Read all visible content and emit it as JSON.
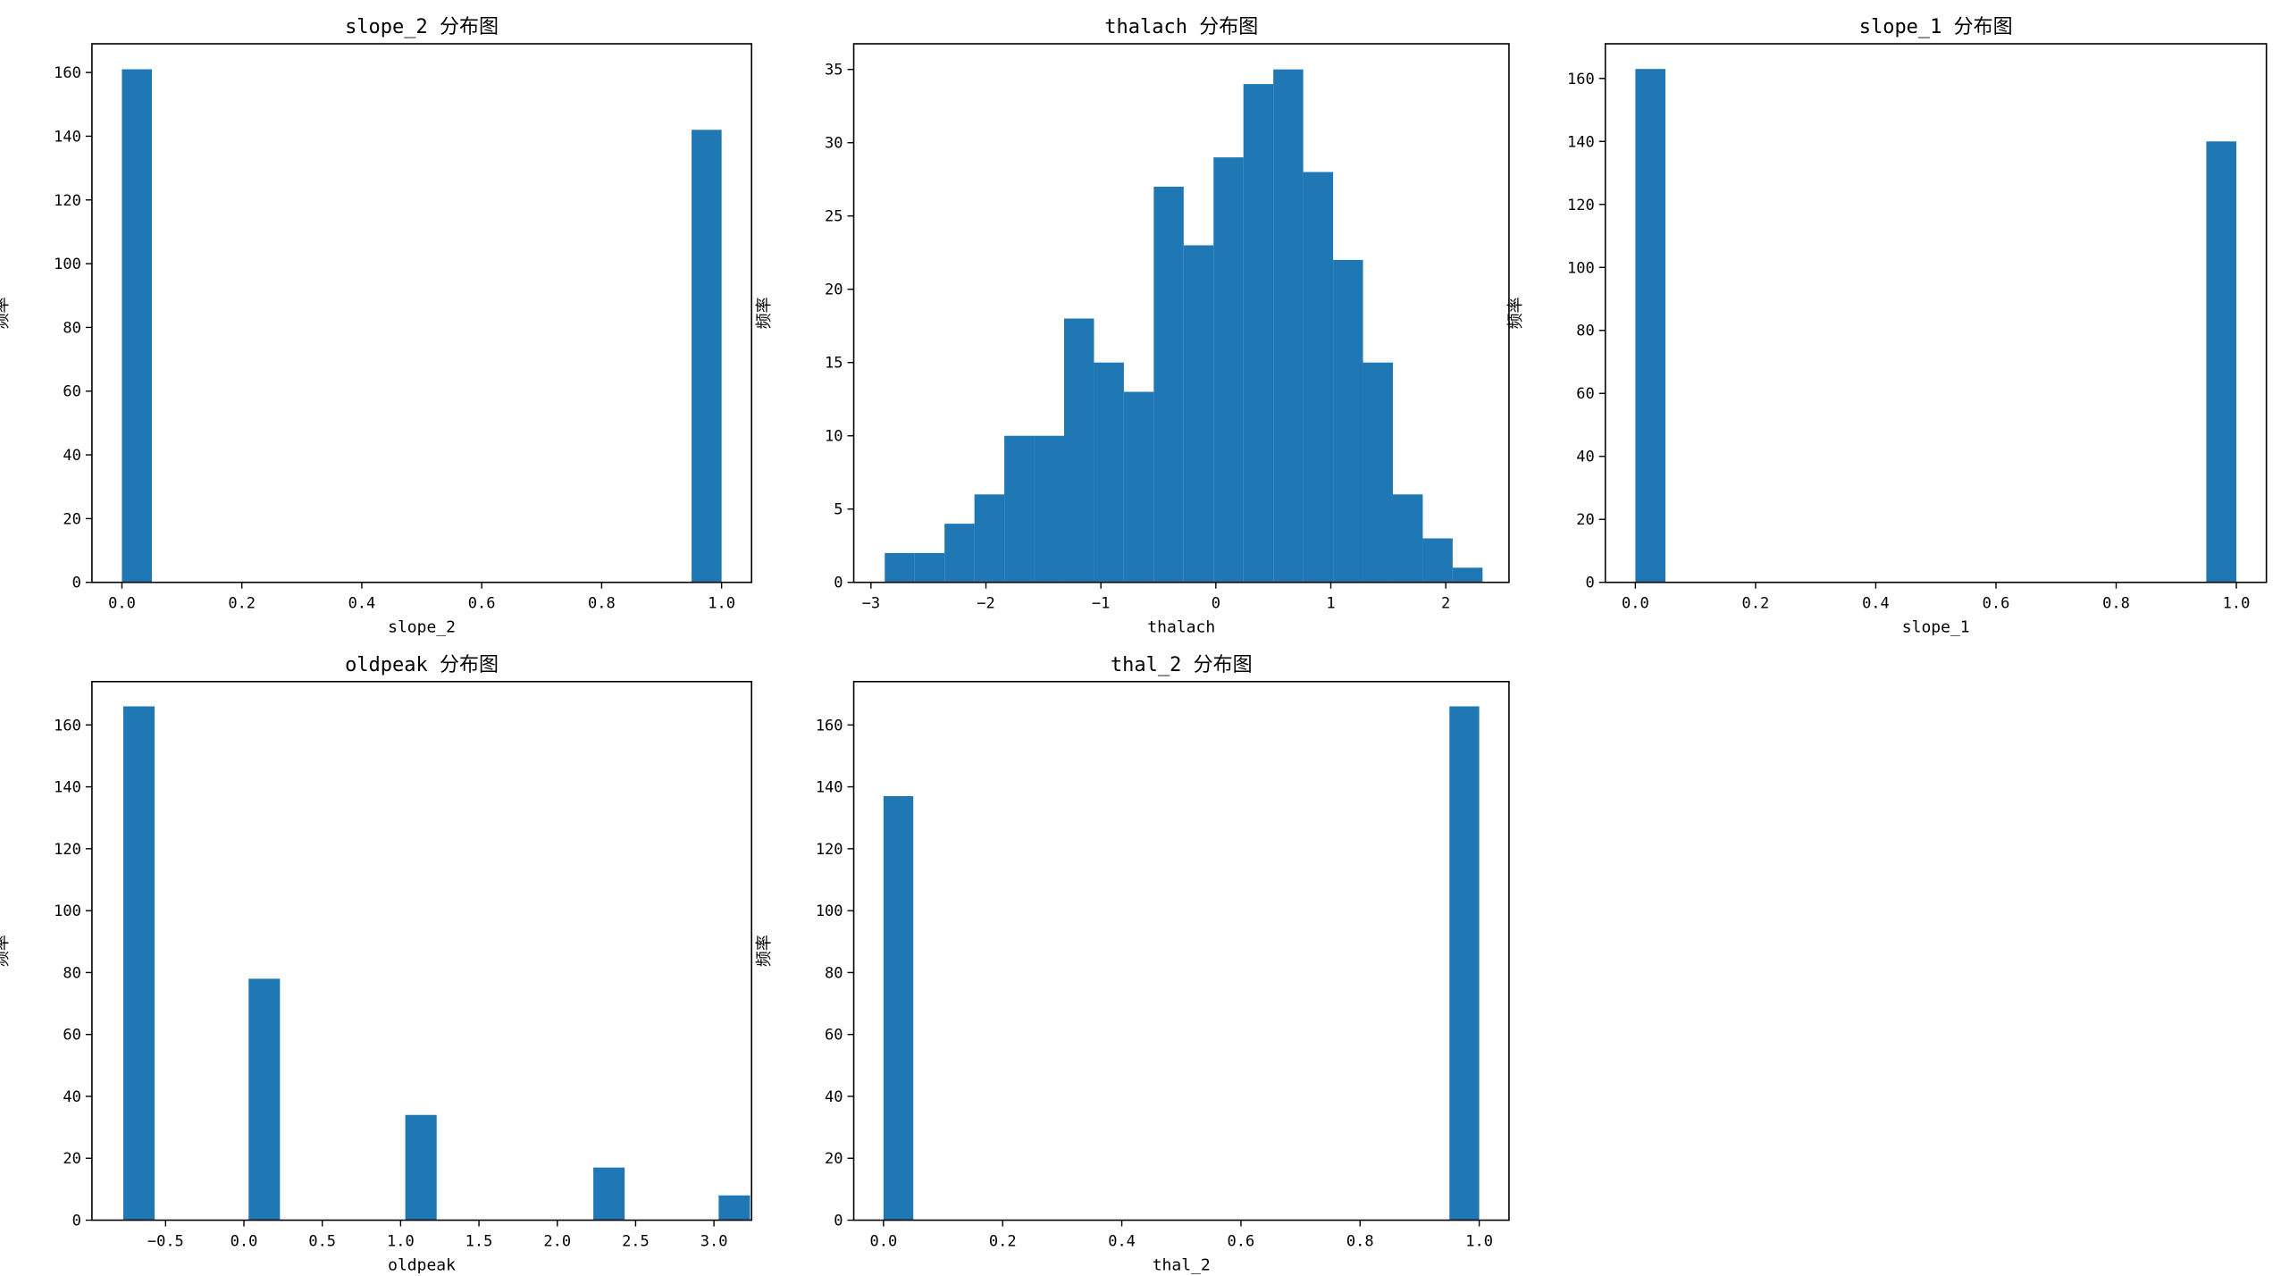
{
  "figure": {
    "bar_color": "#1f77b4",
    "frame_color": "#000000",
    "background": "#ffffff"
  },
  "chart_data": [
    {
      "type": "bar",
      "title": "slope_2 分布图",
      "xlabel": "slope_2",
      "ylabel": "频率",
      "xlim": [
        -0.05,
        1.05
      ],
      "ylim": [
        0,
        169
      ],
      "bin_width": 0.05,
      "bins": [
        {
          "x": 0.0,
          "count": 161
        },
        {
          "x": 0.95,
          "count": 142
        }
      ],
      "xticks": [
        0.0,
        0.2,
        0.4,
        0.6,
        0.8,
        1.0
      ],
      "xtick_labels": [
        "0.0",
        "0.2",
        "0.4",
        "0.6",
        "0.8",
        "1.0"
      ],
      "yticks": [
        0,
        20,
        40,
        60,
        80,
        100,
        120,
        140,
        160
      ],
      "ytick_labels": [
        "0",
        "20",
        "40",
        "60",
        "80",
        "100",
        "120",
        "140",
        "160"
      ],
      "grid": false
    },
    {
      "type": "bar",
      "title": "thalach 分布图",
      "xlabel": "thalach",
      "ylabel": "频率",
      "xlim": [
        -3.15,
        2.55
      ],
      "ylim": [
        0,
        36.75
      ],
      "bin_width": 0.26,
      "bins": [
        {
          "x": -2.88,
          "count": 2
        },
        {
          "x": -2.62,
          "count": 2
        },
        {
          "x": -2.36,
          "count": 4
        },
        {
          "x": -2.1,
          "count": 6
        },
        {
          "x": -1.84,
          "count": 10
        },
        {
          "x": -1.58,
          "count": 10
        },
        {
          "x": -1.32,
          "count": 18
        },
        {
          "x": -1.06,
          "count": 15
        },
        {
          "x": -0.8,
          "count": 13
        },
        {
          "x": -0.54,
          "count": 27
        },
        {
          "x": -0.28,
          "count": 23
        },
        {
          "x": -0.02,
          "count": 29
        },
        {
          "x": 0.24,
          "count": 34
        },
        {
          "x": 0.5,
          "count": 35
        },
        {
          "x": 0.76,
          "count": 28
        },
        {
          "x": 1.02,
          "count": 22
        },
        {
          "x": 1.28,
          "count": 15
        },
        {
          "x": 1.54,
          "count": 6
        },
        {
          "x": 1.8,
          "count": 3
        },
        {
          "x": 2.06,
          "count": 1
        }
      ],
      "xticks": [
        -3,
        -2,
        -1,
        0,
        1,
        2
      ],
      "xtick_labels": [
        "−3",
        "−2",
        "−1",
        "0",
        "1",
        "2"
      ],
      "yticks": [
        0,
        5,
        10,
        15,
        20,
        25,
        30,
        35
      ],
      "ytick_labels": [
        "0",
        "5",
        "10",
        "15",
        "20",
        "25",
        "30",
        "35"
      ],
      "grid": false
    },
    {
      "type": "bar",
      "title": "slope_1 分布图",
      "xlabel": "slope_1",
      "ylabel": "频率",
      "xlim": [
        -0.05,
        1.05
      ],
      "ylim": [
        0,
        171
      ],
      "bin_width": 0.05,
      "bins": [
        {
          "x": 0.0,
          "count": 163
        },
        {
          "x": 0.95,
          "count": 140
        }
      ],
      "xticks": [
        0.0,
        0.2,
        0.4,
        0.6,
        0.8,
        1.0
      ],
      "xtick_labels": [
        "0.0",
        "0.2",
        "0.4",
        "0.6",
        "0.8",
        "1.0"
      ],
      "yticks": [
        0,
        20,
        40,
        60,
        80,
        100,
        120,
        140,
        160
      ],
      "ytick_labels": [
        "0",
        "20",
        "40",
        "60",
        "80",
        "100",
        "120",
        "140",
        "160"
      ],
      "grid": false
    },
    {
      "type": "bar",
      "title": "oldpeak 分布图",
      "xlabel": "oldpeak",
      "ylabel": "频率",
      "xlim": [
        -0.97,
        3.24
      ],
      "ylim": [
        0,
        174
      ],
      "bin_width": 0.2,
      "bins": [
        {
          "x": -0.77,
          "count": 166
        },
        {
          "x": 0.03,
          "count": 78
        },
        {
          "x": 1.03,
          "count": 34
        },
        {
          "x": 2.23,
          "count": 17
        },
        {
          "x": 3.03,
          "count": 8
        }
      ],
      "xticks": [
        -0.5,
        0.0,
        0.5,
        1.0,
        1.5,
        2.0,
        2.5,
        3.0
      ],
      "xtick_labels": [
        "−0.5",
        "0.0",
        "0.5",
        "1.0",
        "1.5",
        "2.0",
        "2.5",
        "3.0"
      ],
      "yticks": [
        0,
        20,
        40,
        60,
        80,
        100,
        120,
        140,
        160
      ],
      "ytick_labels": [
        "0",
        "20",
        "40",
        "60",
        "80",
        "100",
        "120",
        "140",
        "160"
      ],
      "grid": false
    },
    {
      "type": "bar",
      "title": "thal_2 分布图",
      "xlabel": "thal_2",
      "ylabel": "频率",
      "xlim": [
        -0.05,
        1.05
      ],
      "ylim": [
        0,
        174
      ],
      "bin_width": 0.05,
      "bins": [
        {
          "x": 0.0,
          "count": 137
        },
        {
          "x": 0.95,
          "count": 166
        }
      ],
      "xticks": [
        0.0,
        0.2,
        0.4,
        0.6,
        0.8,
        1.0
      ],
      "xtick_labels": [
        "0.0",
        "0.2",
        "0.4",
        "0.6",
        "0.8",
        "1.0"
      ],
      "yticks": [
        0,
        20,
        40,
        60,
        80,
        100,
        120,
        140,
        160
      ],
      "ytick_labels": [
        "0",
        "20",
        "40",
        "60",
        "80",
        "100",
        "120",
        "140",
        "160"
      ],
      "grid": false
    }
  ]
}
